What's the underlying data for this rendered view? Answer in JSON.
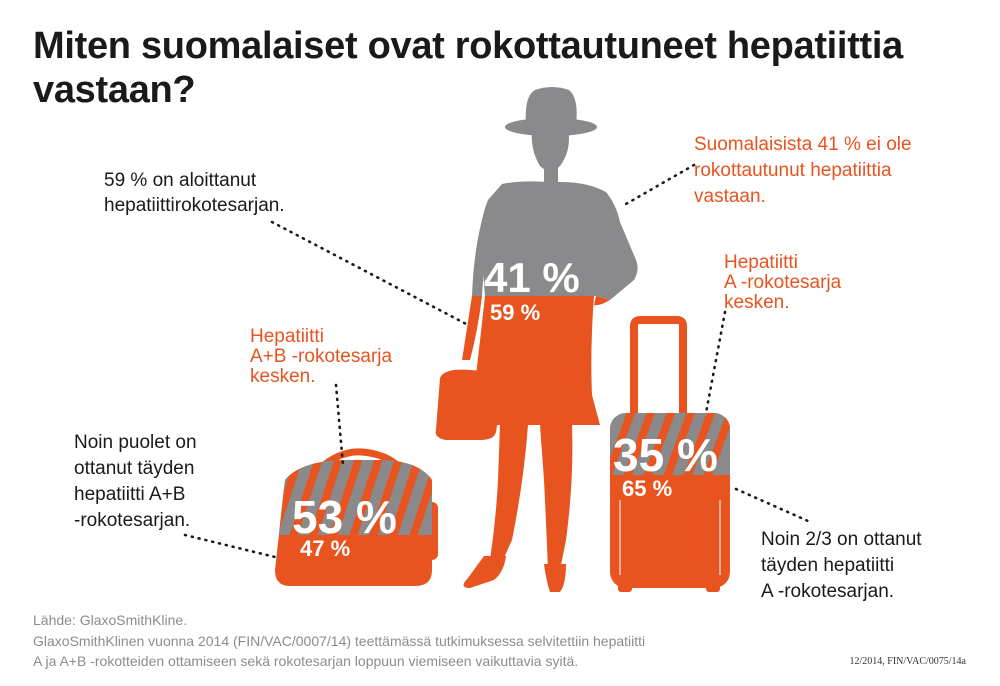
{
  "title": "Miten suomalaiset ovat rokottautuneet hepatiittia vastaan?",
  "woman": {
    "top_label": "41 %",
    "bottom_label": "59 %",
    "not_vaccinated_text": [
      "Suomalaisista 41 % ei ole",
      "rokottautunut hepatiittia",
      "vastaan."
    ],
    "started_text": [
      "59 % on aloittanut",
      "hepatiittirokotesarjan."
    ]
  },
  "bag": {
    "top_label": "53 %",
    "bottom_label": "47 %",
    "ongoing_text": [
      "Hepatiitti",
      "A+B -rokotesarja",
      "kesken."
    ],
    "completed_text": [
      "Noin puolet on",
      "ottanut täyden",
      "hepatiitti A+B",
      "-rokotesarjan."
    ]
  },
  "suitcase": {
    "top_label": "35 %",
    "bottom_label": "65 %",
    "ongoing_text": [
      "Hepatiitti",
      "A -rokotesarja",
      "kesken."
    ],
    "completed_text": [
      "Noin 2/3 on ottanut",
      "täyden hepatiitti",
      "A -rokotesarjan."
    ]
  },
  "footer": {
    "source": "Lähde: GlaxoSmithKline.",
    "line1": "GlaxoSmithKlinen vuonna 2014 (FIN/VAC/0007/14) teettämässä tutkimuksessa selvitettiin hepatiitti",
    "line2": "A ja A+B -rokotteiden ottamiseen sekä rokotesarjan loppuun viemiseen vaikuttavia syitä.",
    "code": "12/2014, FIN/VAC/0075/14a"
  },
  "colors": {
    "orange": "#e8541f",
    "gray": "#8a8a8c",
    "text": "#1a1a1a"
  }
}
